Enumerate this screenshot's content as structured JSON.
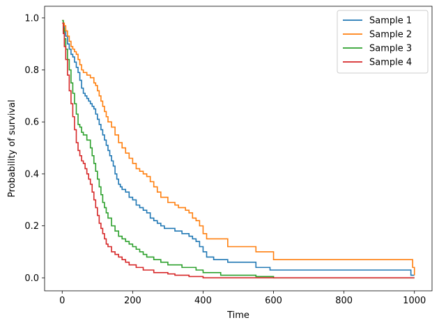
{
  "chart_data": {
    "type": "line",
    "step": true,
    "xlabel": "Time",
    "ylabel": "Probability of survival",
    "xlim": [
      -50,
      1050
    ],
    "ylim": [
      -0.05,
      1.045
    ],
    "xticks": [
      0,
      200,
      400,
      600,
      800,
      1000
    ],
    "xtick_labels": [
      "0",
      "200",
      "400",
      "600",
      "800",
      "1000"
    ],
    "yticks": [
      0.0,
      0.2,
      0.4,
      0.6,
      0.8,
      1.0
    ],
    "ytick_labels": [
      "0.0",
      "0.2",
      "0.4",
      "0.6",
      "0.8",
      "1.0"
    ],
    "grid": false,
    "legend_position": "top-right",
    "series": [
      {
        "name": "Sample 1",
        "color": "#1f77b4",
        "x": [
          0,
          3,
          6,
          10,
          15,
          20,
          25,
          30,
          35,
          40,
          45,
          50,
          55,
          60,
          65,
          70,
          75,
          80,
          85,
          90,
          95,
          100,
          105,
          110,
          115,
          120,
          125,
          130,
          135,
          140,
          145,
          150,
          155,
          160,
          165,
          170,
          180,
          190,
          200,
          210,
          220,
          230,
          240,
          250,
          260,
          270,
          280,
          290,
          300,
          320,
          340,
          360,
          370,
          380,
          390,
          400,
          410,
          430,
          470,
          520,
          550,
          590,
          800,
          990,
          1000
        ],
        "y": [
          0.99,
          0.97,
          0.95,
          0.93,
          0.9,
          0.88,
          0.86,
          0.85,
          0.83,
          0.81,
          0.79,
          0.76,
          0.73,
          0.71,
          0.7,
          0.69,
          0.68,
          0.67,
          0.66,
          0.65,
          0.63,
          0.61,
          0.59,
          0.57,
          0.55,
          0.53,
          0.51,
          0.49,
          0.47,
          0.45,
          0.43,
          0.4,
          0.38,
          0.36,
          0.35,
          0.34,
          0.33,
          0.31,
          0.3,
          0.28,
          0.27,
          0.26,
          0.25,
          0.23,
          0.22,
          0.21,
          0.2,
          0.19,
          0.19,
          0.18,
          0.17,
          0.16,
          0.15,
          0.14,
          0.12,
          0.1,
          0.08,
          0.07,
          0.06,
          0.06,
          0.04,
          0.03,
          0.03,
          0.01,
          0.01
        ]
      },
      {
        "name": "Sample 2",
        "color": "#ff7f0e",
        "x": [
          0,
          3,
          6,
          10,
          15,
          20,
          25,
          30,
          35,
          40,
          45,
          50,
          55,
          60,
          70,
          80,
          90,
          95,
          100,
          105,
          110,
          115,
          120,
          125,
          130,
          140,
          150,
          160,
          170,
          180,
          190,
          200,
          210,
          220,
          230,
          240,
          250,
          260,
          270,
          280,
          300,
          310,
          320,
          330,
          350,
          360,
          370,
          380,
          390,
          400,
          410,
          420,
          450,
          470,
          550,
          590,
          600,
          800,
          990,
          995,
          1000
        ],
        "y": [
          0.99,
          0.98,
          0.97,
          0.95,
          0.93,
          0.91,
          0.89,
          0.88,
          0.87,
          0.86,
          0.84,
          0.82,
          0.8,
          0.79,
          0.78,
          0.77,
          0.75,
          0.74,
          0.72,
          0.7,
          0.68,
          0.66,
          0.64,
          0.62,
          0.6,
          0.58,
          0.55,
          0.52,
          0.5,
          0.48,
          0.46,
          0.44,
          0.42,
          0.41,
          0.4,
          0.39,
          0.37,
          0.35,
          0.33,
          0.31,
          0.29,
          0.29,
          0.28,
          0.27,
          0.26,
          0.25,
          0.23,
          0.22,
          0.2,
          0.17,
          0.15,
          0.15,
          0.15,
          0.12,
          0.1,
          0.1,
          0.07,
          0.07,
          0.07,
          0.04,
          0.01
        ]
      },
      {
        "name": "Sample 3",
        "color": "#2ca02c",
        "x": [
          0,
          3,
          6,
          10,
          15,
          20,
          25,
          30,
          35,
          40,
          45,
          50,
          55,
          60,
          70,
          80,
          85,
          90,
          95,
          100,
          105,
          110,
          115,
          120,
          125,
          130,
          140,
          150,
          160,
          170,
          180,
          190,
          200,
          210,
          220,
          230,
          240,
          250,
          260,
          280,
          300,
          320,
          340,
          360,
          380,
          400,
          450,
          500,
          550,
          600,
          800,
          1000
        ],
        "y": [
          0.99,
          0.96,
          0.92,
          0.88,
          0.84,
          0.8,
          0.75,
          0.71,
          0.67,
          0.63,
          0.59,
          0.58,
          0.56,
          0.55,
          0.53,
          0.5,
          0.47,
          0.44,
          0.41,
          0.38,
          0.35,
          0.32,
          0.29,
          0.27,
          0.25,
          0.23,
          0.2,
          0.18,
          0.16,
          0.15,
          0.14,
          0.13,
          0.12,
          0.11,
          0.1,
          0.09,
          0.08,
          0.08,
          0.07,
          0.06,
          0.05,
          0.05,
          0.04,
          0.04,
          0.03,
          0.02,
          0.01,
          0.01,
          0.005,
          0.0,
          0.0,
          0.0
        ]
      },
      {
        "name": "Sample 4",
        "color": "#d62728",
        "x": [
          0,
          3,
          6,
          10,
          15,
          20,
          25,
          30,
          35,
          40,
          45,
          50,
          55,
          60,
          65,
          70,
          75,
          80,
          85,
          90,
          95,
          100,
          105,
          110,
          115,
          120,
          125,
          130,
          140,
          150,
          160,
          170,
          180,
          190,
          200,
          210,
          220,
          230,
          240,
          260,
          280,
          300,
          320,
          340,
          360,
          380,
          400,
          600,
          800,
          1000
        ],
        "y": [
          0.98,
          0.94,
          0.89,
          0.84,
          0.78,
          0.72,
          0.67,
          0.62,
          0.57,
          0.52,
          0.49,
          0.47,
          0.45,
          0.44,
          0.42,
          0.4,
          0.38,
          0.36,
          0.33,
          0.3,
          0.27,
          0.24,
          0.21,
          0.19,
          0.17,
          0.15,
          0.13,
          0.12,
          0.1,
          0.09,
          0.08,
          0.07,
          0.06,
          0.05,
          0.05,
          0.04,
          0.04,
          0.03,
          0.03,
          0.02,
          0.02,
          0.015,
          0.01,
          0.01,
          0.005,
          0.005,
          0.0,
          0.0,
          0.0,
          0.0
        ]
      }
    ]
  }
}
